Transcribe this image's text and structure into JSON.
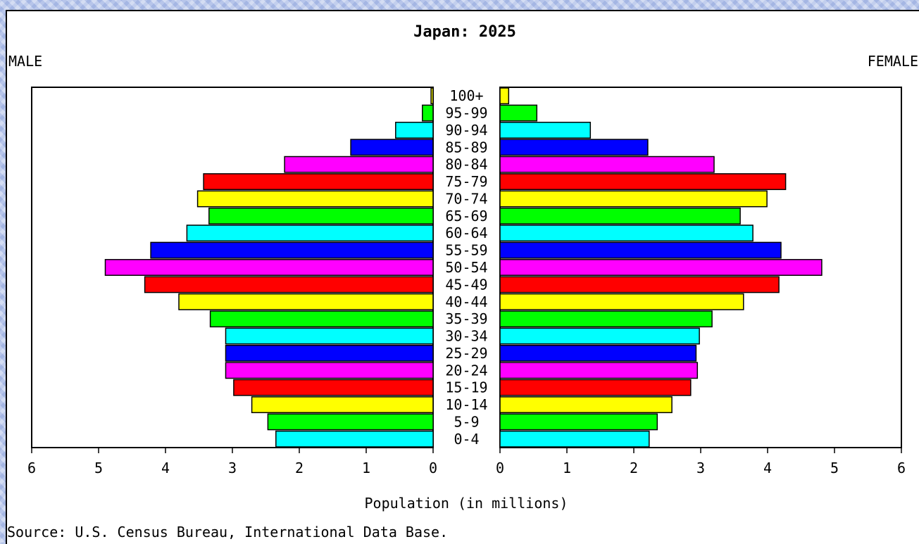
{
  "chart_data": {
    "type": "bar",
    "orientation": "horizontal-pyramid",
    "title": "Japan: 2025",
    "left_label": "MALE",
    "right_label": "FEMALE",
    "xlabel": "Population (in millions)",
    "source": "Source: U.S. Census Bureau, International Data Base.",
    "xlim": [
      0,
      6
    ],
    "xticks": [
      "0",
      "1",
      "2",
      "3",
      "4",
      "5",
      "6"
    ],
    "categories": [
      "0-4",
      "5-9",
      "10-14",
      "15-19",
      "20-24",
      "25-29",
      "30-34",
      "35-39",
      "40-44",
      "45-49",
      "50-54",
      "55-59",
      "60-64",
      "65-69",
      "70-74",
      "75-79",
      "80-84",
      "85-89",
      "90-94",
      "95-99",
      "100+"
    ],
    "series": [
      {
        "name": "MALE",
        "values": [
          2.35,
          2.47,
          2.71,
          2.98,
          3.1,
          3.1,
          3.1,
          3.33,
          3.8,
          4.31,
          4.9,
          4.22,
          3.68,
          3.35,
          3.52,
          3.43,
          2.22,
          1.23,
          0.56,
          0.16,
          0.03
        ]
      },
      {
        "name": "FEMALE",
        "values": [
          2.23,
          2.35,
          2.57,
          2.85,
          2.95,
          2.93,
          2.98,
          3.17,
          3.64,
          4.17,
          4.81,
          4.2,
          3.78,
          3.59,
          3.99,
          4.27,
          3.2,
          2.21,
          1.35,
          0.55,
          0.13
        ]
      }
    ],
    "colors": [
      "#00ffff",
      "#00ff00",
      "#ffff00",
      "#ff0000",
      "#ff00ff",
      "#0000ff",
      "#00ffff",
      "#00ff00",
      "#ffff00",
      "#ff0000",
      "#ff00ff",
      "#0000ff",
      "#00ffff",
      "#00ff00",
      "#ffff00",
      "#ff0000",
      "#ff00ff",
      "#0000ff",
      "#00ffff",
      "#00ff00",
      "#ffff00"
    ],
    "grid": false
  }
}
